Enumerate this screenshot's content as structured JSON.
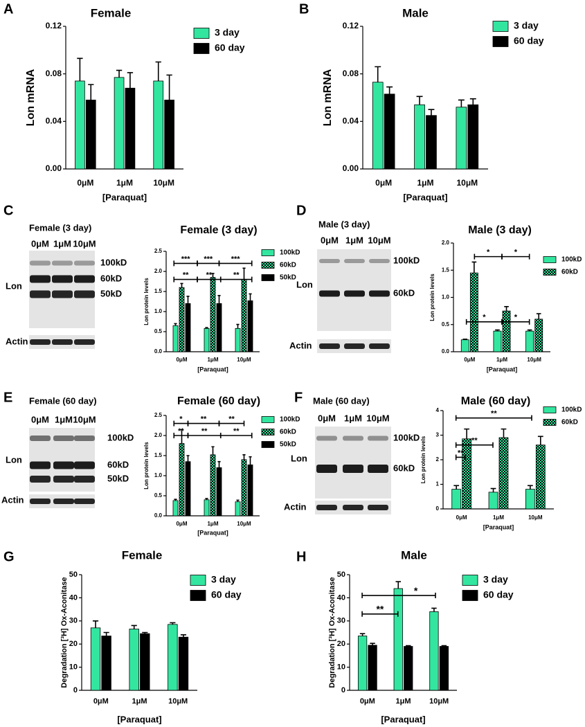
{
  "chart_data": [
    {
      "type": "bar",
      "panel": "A",
      "title": "Female",
      "ylabel": "Lon mRNA",
      "xlabel": "[Paraquat]",
      "categories": [
        "0μM",
        "1μM",
        "10μM"
      ],
      "series": [
        {
          "name": "3 day",
          "color": "#33e6a0",
          "values": [
            0.074,
            0.077,
            0.074
          ],
          "errors": [
            0.019,
            0.006,
            0.016
          ]
        },
        {
          "name": "60 day",
          "color": "#000000",
          "values": [
            0.058,
            0.068,
            0.058
          ],
          "errors": [
            0.013,
            0.013,
            0.021
          ]
        }
      ],
      "ylim": [
        0,
        0.12
      ],
      "yticks": [
        {
          "value": 0,
          "label": "0.00"
        },
        0.04,
        0.08,
        0.12
      ]
    },
    {
      "type": "bar",
      "panel": "B",
      "title": "Male",
      "ylabel": "Lon mRNA",
      "xlabel": "[Paraquat]",
      "categories": [
        "0μM",
        "1μM",
        "10μM"
      ],
      "series": [
        {
          "name": "3 day",
          "color": "#33e6a0",
          "values": [
            0.073,
            0.054,
            0.052
          ],
          "errors": [
            0.013,
            0.007,
            0.006
          ]
        },
        {
          "name": "60 day",
          "color": "#000000",
          "values": [
            0.063,
            0.045,
            0.054
          ],
          "errors": [
            0.006,
            0.005,
            0.005
          ]
        }
      ],
      "ylim": [
        0,
        0.12
      ],
      "yticks": [
        {
          "value": 0,
          "label": "0.00"
        },
        0.04,
        0.08,
        0.12
      ]
    },
    {
      "type": "bar",
      "panel": "C",
      "title": "Female (3 day)",
      "ylabel": "Lon protein levels",
      "xlabel": "[Paraquat]",
      "categories": [
        "0μM",
        "1μM",
        "10μM"
      ],
      "series": [
        {
          "name": "100kD",
          "color": "#33e6a0",
          "values": [
            0.65,
            0.58,
            0.58
          ],
          "errors": [
            0.05,
            0.02,
            0.1
          ]
        },
        {
          "name": "60kD",
          "color": "#33e6a0",
          "pattern": "checkerboard",
          "values": [
            1.6,
            1.85,
            1.8
          ],
          "errors": [
            0.1,
            0.1,
            0.28
          ]
        },
        {
          "name": "50kD",
          "color": "#000000",
          "values": [
            1.2,
            1.2,
            1.27
          ],
          "errors": [
            0.18,
            0.2,
            0.17
          ]
        }
      ],
      "ylim": [
        0,
        2.5
      ],
      "yticks": [
        {
          "value": 0,
          "label": "0.0"
        },
        0.5,
        {
          "value": 1,
          "label": "1.0"
        },
        1.5,
        {
          "value": 2,
          "label": "2.0"
        },
        2.5
      ],
      "annotations": [
        "***",
        "***",
        "***",
        "**",
        "**",
        "**"
      ]
    },
    {
      "type": "bar",
      "panel": "D",
      "title": "Male (3 day)",
      "ylabel": "Lon protein levels",
      "xlabel": "[Paraquat]",
      "categories": [
        "0μM",
        "1μM",
        "10μM"
      ],
      "series": [
        {
          "name": "100kD",
          "color": "#33e6a0",
          "values": [
            0.22,
            0.38,
            0.38
          ],
          "errors": [
            0.01,
            0.02,
            0.02
          ]
        },
        {
          "name": "60kD",
          "color": "#33e6a0",
          "pattern": "checkerboard",
          "values": [
            1.45,
            0.75,
            0.6
          ],
          "errors": [
            0.2,
            0.08,
            0.1
          ]
        }
      ],
      "ylim": [
        0,
        2.0
      ],
      "yticks": [
        {
          "value": 0,
          "label": "0.0"
        },
        0.5,
        {
          "value": 1,
          "label": "1.0"
        },
        1.5,
        {
          "value": 2,
          "label": "2.0"
        }
      ],
      "annotations": [
        "*",
        "*",
        "*",
        "*"
      ]
    },
    {
      "type": "bar",
      "panel": "E",
      "title": "Female (60 day)",
      "ylabel": "Lon protein levels",
      "xlabel": "[Paraquat]",
      "categories": [
        "0μM",
        "1μM",
        "10μM"
      ],
      "series": [
        {
          "name": "100kD",
          "color": "#33e6a0",
          "values": [
            0.38,
            0.4,
            0.35
          ],
          "errors": [
            0.03,
            0.03,
            0.04
          ]
        },
        {
          "name": "60kD",
          "color": "#33e6a0",
          "pattern": "checkerboard",
          "values": [
            1.8,
            1.52,
            1.4
          ],
          "errors": [
            0.35,
            0.2,
            0.12
          ]
        },
        {
          "name": "50kD",
          "color": "#000000",
          "values": [
            1.35,
            1.2,
            1.27
          ],
          "errors": [
            0.15,
            0.15,
            0.2
          ]
        }
      ],
      "ylim": [
        0,
        2.5
      ],
      "yticks": [
        {
          "value": 0,
          "label": "0.0"
        },
        0.5,
        {
          "value": 1,
          "label": "1.0"
        },
        1.5,
        {
          "value": 2,
          "label": "2.0"
        },
        2.5
      ],
      "annotations": [
        "*",
        "**",
        "**",
        "**",
        "**",
        "**"
      ]
    },
    {
      "type": "bar",
      "panel": "F",
      "title": "Male (60 day)",
      "ylabel": "Lon protein levels",
      "xlabel": "[Paraquat]",
      "categories": [
        "0μM",
        "1μM",
        "10μM"
      ],
      "series": [
        {
          "name": "100kD",
          "color": "#33e6a0",
          "values": [
            0.8,
            0.68,
            0.8
          ],
          "errors": [
            0.15,
            0.15,
            0.15
          ]
        },
        {
          "name": "60kD",
          "color": "#33e6a0",
          "pattern": "checkerboard",
          "values": [
            2.85,
            2.9,
            2.6
          ],
          "errors": [
            0.4,
            0.35,
            0.35
          ]
        }
      ],
      "ylim": [
        0,
        4
      ],
      "yticks": [
        0,
        1,
        2,
        3,
        4
      ],
      "annotations": [
        "**",
        "**",
        "**"
      ]
    },
    {
      "type": "bar",
      "panel": "G",
      "title": "Female",
      "ylabel": "Degradation [³H] Ox-Aconitase",
      "xlabel": "[Paraquat]",
      "categories": [
        "0μM",
        "1μM",
        "10μM"
      ],
      "series": [
        {
          "name": "3 day",
          "color": "#33e6a0",
          "values": [
            27,
            26.5,
            28.5
          ],
          "errors": [
            3,
            1.5,
            0.7
          ]
        },
        {
          "name": "60 day",
          "color": "#000000",
          "values": [
            23.5,
            24.5,
            23
          ],
          "errors": [
            1.5,
            0.5,
            1
          ]
        }
      ],
      "ylim": [
        0,
        50
      ],
      "yticks": [
        0,
        10,
        20,
        30,
        40,
        50
      ]
    },
    {
      "type": "bar",
      "panel": "H",
      "title": "Male",
      "ylabel": "Degradation [³H] Ox-Aconitase",
      "xlabel": "[Paraquat]",
      "categories": [
        "0μM",
        "1μM",
        "10μM"
      ],
      "series": [
        {
          "name": "3 day",
          "color": "#33e6a0",
          "values": [
            23.5,
            44,
            34
          ],
          "errors": [
            1,
            3,
            1.5
          ]
        },
        {
          "name": "60 day",
          "color": "#000000",
          "values": [
            19.5,
            19,
            19
          ],
          "errors": [
            0.8,
            0.3,
            0.3
          ]
        }
      ],
      "ylim": [
        0,
        50
      ],
      "yticks": [
        0,
        10,
        20,
        30,
        40,
        50
      ],
      "annotations": [
        "*",
        "**"
      ]
    }
  ],
  "blots": [
    {
      "title": "Female (3 day)",
      "lanes": [
        "0μM",
        "1μM",
        "10μM"
      ],
      "protein": "Lon",
      "bands": [
        "100kD",
        "60kD",
        "50kD"
      ],
      "control": "Actin"
    },
    {
      "title": "Male (3 day)",
      "lanes": [
        "0μM",
        "1μM",
        "10μM"
      ],
      "protein": "Lon",
      "bands": [
        "100kD",
        "60kD"
      ],
      "control": "Actin"
    },
    {
      "title": "Female (60 day)",
      "lanes": [
        "0μM",
        "1μM",
        "10μM"
      ],
      "protein": "Lon",
      "bands": [
        "100kD",
        "60kD",
        "50kD"
      ],
      "control": "Actin"
    },
    {
      "title": "Male (60 day)",
      "lanes": [
        "0μM",
        "1μM",
        "10μM"
      ],
      "protein": "Lon",
      "bands": [
        "100kD",
        "60kD"
      ],
      "control": "Actin"
    }
  ]
}
